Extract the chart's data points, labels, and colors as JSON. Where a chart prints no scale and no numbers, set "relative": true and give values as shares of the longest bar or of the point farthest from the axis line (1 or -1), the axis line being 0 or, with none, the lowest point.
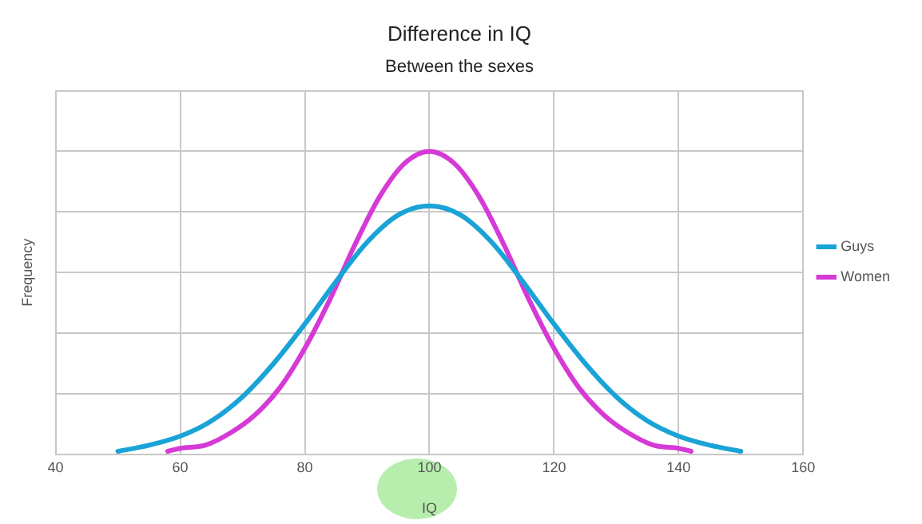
{
  "chart_data": {
    "type": "line",
    "title": "Difference in IQ",
    "subtitle": "Between the sexes",
    "xlabel": "IQ",
    "ylabel": "Frequency",
    "relative": true,
    "xlim": [
      40,
      160
    ],
    "xticks": [
      40,
      60,
      80,
      100,
      120,
      140,
      160
    ],
    "grid": true,
    "legend": "right",
    "marker": "none",
    "line_style": "solid",
    "series": [
      {
        "name": "Guys",
        "color": "#1aa3d6",
        "x": [
          50,
          55,
          60,
          65,
          70,
          75,
          80,
          85,
          90,
          95,
          100,
          105,
          110,
          115,
          120,
          125,
          130,
          135,
          140,
          145,
          150
        ],
        "values": [
          0.01,
          0.03,
          0.06,
          0.11,
          0.19,
          0.3,
          0.43,
          0.57,
          0.7,
          0.79,
          0.82,
          0.79,
          0.7,
          0.57,
          0.43,
          0.3,
          0.19,
          0.11,
          0.06,
          0.03,
          0.01
        ]
      },
      {
        "name": "Women",
        "color": "#d63ad6",
        "x": [
          58,
          60,
          64,
          68,
          72,
          76,
          80,
          84,
          88,
          92,
          96,
          100,
          104,
          108,
          112,
          116,
          120,
          124,
          128,
          132,
          136,
          140,
          142
        ],
        "values": [
          0.01,
          0.02,
          0.03,
          0.07,
          0.13,
          0.22,
          0.35,
          0.51,
          0.69,
          0.85,
          0.96,
          1,
          0.96,
          0.85,
          0.69,
          0.51,
          0.35,
          0.22,
          0.13,
          0.07,
          0.03,
          0.02,
          0.01
        ]
      }
    ]
  }
}
